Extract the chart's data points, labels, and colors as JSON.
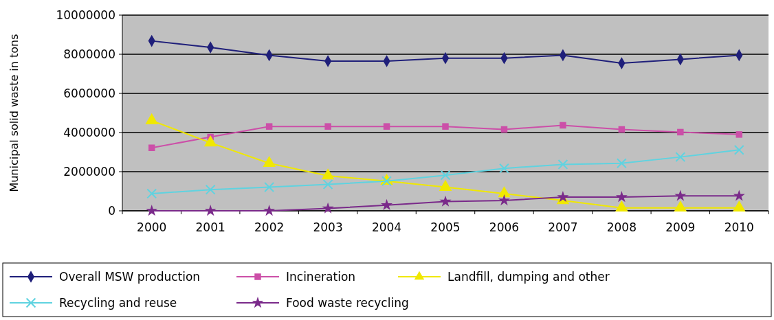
{
  "chart_data": {
    "type": "line",
    "ylabel": "Municipal solid waste in tons",
    "categories": [
      "2000",
      "2001",
      "2002",
      "2003",
      "2004",
      "2005",
      "2006",
      "2007",
      "2008",
      "2009",
      "2010"
    ],
    "series": [
      {
        "name": "Overall MSW production",
        "color": "#1f1f7a",
        "marker": "diamond",
        "values": [
          8680000,
          8350000,
          7950000,
          7650000,
          7650000,
          7800000,
          7800000,
          7950000,
          7540000,
          7740000,
          7950000
        ]
      },
      {
        "name": "Incineration",
        "color": "#cc4fa8",
        "marker": "square",
        "values": [
          3220000,
          3770000,
          4310000,
          4310000,
          4310000,
          4310000,
          4160000,
          4370000,
          4160000,
          4020000,
          3900000
        ]
      },
      {
        "name": "Landfill, dumping and other",
        "color": "#f0e800",
        "marker": "triangle",
        "values": [
          4610000,
          3480000,
          2430000,
          1790000,
          1520000,
          1210000,
          880000,
          530000,
          150000,
          150000,
          150000
        ]
      },
      {
        "name": "Recycling and reuse",
        "color": "#5fd3e0",
        "marker": "cross",
        "values": [
          880000,
          1080000,
          1210000,
          1350000,
          1520000,
          1820000,
          2170000,
          2370000,
          2430000,
          2750000,
          3110000
        ]
      },
      {
        "name": "Food waste recycling",
        "color": "#7a2a8a",
        "marker": "star",
        "values": [
          0,
          0,
          0,
          120000,
          290000,
          470000,
          530000,
          700000,
          700000,
          760000,
          760000
        ]
      }
    ],
    "ylim": [
      0,
      10000000
    ],
    "yticks": [
      0,
      2000000,
      4000000,
      6000000,
      8000000,
      10000000
    ],
    "grid": "y",
    "legend": "bottom",
    "line_style": "solid"
  }
}
